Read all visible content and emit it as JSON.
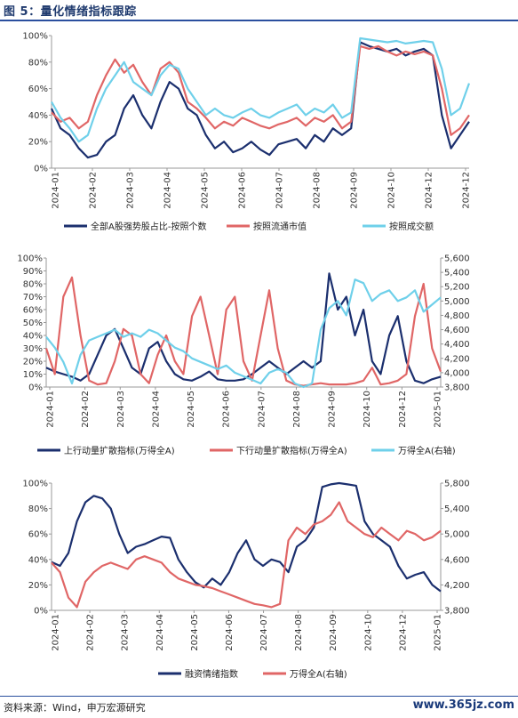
{
  "title": "图 5：量化情绪指标跟踪",
  "source": "资料来源：Wind，申万宏源研究",
  "watermark": "www.365jz.com",
  "chart_data": [
    {
      "type": "line",
      "x_ticks": [
        "2024-01",
        "2024-02",
        "2024-03",
        "2024-04",
        "2024-05",
        "2024-06",
        "2024-07",
        "2024-08",
        "2024-09",
        "2024-10",
        "2024-12",
        "2024-12"
      ],
      "y_ticks": [
        "0%",
        "20%",
        "40%",
        "60%",
        "80%",
        "100%"
      ],
      "ylim": [
        0,
        100
      ],
      "xlim": [
        0,
        23
      ],
      "legend": "bottom",
      "series": [
        {
          "name": "全部A股强势股占比-按照个数",
          "color": "#1b2f6e",
          "x": [
            0,
            0.5,
            1,
            1.5,
            2,
            2.5,
            3,
            3.5,
            4,
            4.5,
            5,
            5.5,
            6,
            6.5,
            7,
            7.5,
            8,
            8.5,
            9,
            9.5,
            10,
            10.5,
            11,
            11.5,
            12,
            12.5,
            13,
            13.5,
            14,
            14.5,
            15,
            15.5,
            16,
            16.5,
            17,
            17.5,
            18,
            18.5,
            19,
            19.5,
            20,
            20.5,
            21,
            21.5,
            22,
            22.5,
            23
          ],
          "values": [
            45,
            30,
            25,
            15,
            8,
            10,
            20,
            25,
            45,
            55,
            40,
            30,
            50,
            65,
            60,
            45,
            40,
            25,
            15,
            20,
            12,
            15,
            20,
            14,
            10,
            18,
            20,
            22,
            15,
            25,
            20,
            30,
            25,
            30,
            95,
            92,
            90,
            88,
            90,
            85,
            88,
            90,
            85,
            40,
            15,
            25,
            35
          ]
        },
        {
          "name": "按照流通市值",
          "color": "#e06666",
          "x": [
            0,
            0.5,
            1,
            1.5,
            2,
            2.5,
            3,
            3.5,
            4,
            4.5,
            5,
            5.5,
            6,
            6.5,
            7,
            7.5,
            8,
            8.5,
            9,
            9.5,
            10,
            10.5,
            11,
            11.5,
            12,
            12.5,
            13,
            13.5,
            14,
            14.5,
            15,
            15.5,
            16,
            16.5,
            17,
            17.5,
            18,
            18.5,
            19,
            19.5,
            20,
            20.5,
            21,
            21.5,
            22,
            22.5,
            23
          ],
          "values": [
            42,
            35,
            38,
            30,
            35,
            55,
            70,
            82,
            72,
            78,
            65,
            55,
            75,
            80,
            72,
            50,
            45,
            38,
            30,
            35,
            32,
            38,
            35,
            32,
            30,
            33,
            35,
            38,
            32,
            38,
            35,
            40,
            30,
            35,
            92,
            90,
            92,
            88,
            85,
            88,
            86,
            88,
            85,
            60,
            25,
            30,
            40
          ]
        },
        {
          "name": "按照成交额",
          "color": "#6fd0ea",
          "x": [
            0,
            0.5,
            1,
            1.5,
            2,
            2.5,
            3,
            3.5,
            4,
            4.5,
            5,
            5.5,
            6,
            6.5,
            7,
            7.5,
            8,
            8.5,
            9,
            9.5,
            10,
            10.5,
            11,
            11.5,
            12,
            12.5,
            13,
            13.5,
            14,
            14.5,
            15,
            15.5,
            16,
            16.5,
            17,
            17.5,
            18,
            18.5,
            19,
            19.5,
            20,
            20.5,
            21,
            21.5,
            22,
            22.5,
            23
          ],
          "values": [
            50,
            38,
            30,
            20,
            25,
            45,
            60,
            70,
            80,
            65,
            60,
            55,
            70,
            78,
            75,
            60,
            50,
            40,
            45,
            40,
            38,
            42,
            45,
            40,
            38,
            42,
            45,
            48,
            40,
            45,
            42,
            48,
            38,
            42,
            98,
            97,
            96,
            95,
            96,
            94,
            95,
            96,
            95,
            75,
            40,
            45,
            64
          ]
        }
      ]
    },
    {
      "type": "line",
      "x_ticks": [
        "2024-01",
        "2024-02",
        "2024-03",
        "2024-04",
        "2024-05",
        "2024-06",
        "2024-07",
        "2024-08",
        "2024-09",
        "2024-10",
        "2024-12",
        "2025-01"
      ],
      "y_ticks": [
        "0%",
        "10%",
        "20%",
        "30%",
        "40%",
        "50%",
        "60%",
        "70%",
        "80%",
        "90%",
        "100%"
      ],
      "y2_ticks": [
        "3,800",
        "4,000",
        "4,200",
        "4,400",
        "4,600",
        "4,800",
        "5,000",
        "5,200",
        "5,400",
        "5,600"
      ],
      "ylim": [
        0,
        100
      ],
      "y2lim": [
        3800,
        5600
      ],
      "xlim": [
        0,
        23
      ],
      "legend": "bottom",
      "series": [
        {
          "name": "上行动量扩散指标(万得全A)",
          "color": "#1b2f6e",
          "axis": "left",
          "x": [
            0,
            0.5,
            1,
            1.5,
            2,
            2.5,
            3,
            3.5,
            4,
            4.5,
            5,
            5.5,
            6,
            6.5,
            7,
            7.5,
            8,
            8.5,
            9,
            9.5,
            10,
            10.5,
            11,
            11.5,
            12,
            12.5,
            13,
            13.5,
            14,
            14.5,
            15,
            15.5,
            16,
            16.5,
            17,
            17.5,
            18,
            18.5,
            19,
            19.5,
            20,
            20.5,
            21,
            21.5,
            22,
            22.5,
            23
          ],
          "values": [
            15,
            12,
            10,
            8,
            5,
            10,
            25,
            40,
            45,
            30,
            15,
            10,
            30,
            35,
            20,
            10,
            6,
            5,
            8,
            12,
            6,
            5,
            5,
            6,
            10,
            15,
            20,
            15,
            10,
            15,
            20,
            15,
            20,
            88,
            60,
            70,
            40,
            60,
            20,
            10,
            40,
            55,
            20,
            5,
            3,
            6,
            8
          ]
        },
        {
          "name": "下行动量扩散指标(万得全A)",
          "color": "#e06666",
          "axis": "left",
          "x": [
            0,
            0.5,
            1,
            1.5,
            2,
            2.5,
            3,
            3.5,
            4,
            4.5,
            5,
            5.5,
            6,
            6.5,
            7,
            7.5,
            8,
            8.5,
            9,
            9.5,
            10,
            10.5,
            11,
            11.5,
            12,
            12.5,
            13,
            13.5,
            14,
            14.5,
            15,
            15.5,
            16,
            16.5,
            17,
            17.5,
            18,
            18.5,
            19,
            19.5,
            20,
            20.5,
            21,
            21.5,
            22,
            22.5,
            23
          ],
          "values": [
            30,
            10,
            70,
            85,
            40,
            5,
            2,
            3,
            20,
            45,
            40,
            10,
            3,
            25,
            40,
            20,
            10,
            55,
            70,
            40,
            10,
            60,
            70,
            20,
            5,
            40,
            75,
            30,
            5,
            2,
            1,
            2,
            3,
            2,
            2,
            2,
            3,
            5,
            15,
            2,
            3,
            5,
            10,
            55,
            80,
            30,
            12
          ]
        },
        {
          "name": "万得全A(右轴)",
          "color": "#6fd0ea",
          "axis": "right",
          "x": [
            0,
            0.5,
            1,
            1.5,
            2,
            2.5,
            3,
            3.5,
            4,
            4.5,
            5,
            5.5,
            6,
            6.5,
            7,
            7.5,
            8,
            8.5,
            9,
            9.5,
            10,
            10.5,
            11,
            11.5,
            12,
            12.5,
            13,
            13.5,
            14,
            14.5,
            15,
            15.5,
            16,
            16.5,
            17,
            17.5,
            18,
            18.5,
            19,
            19.5,
            20,
            20.5,
            21,
            21.5,
            22,
            22.5,
            23
          ],
          "values": [
            4500,
            4350,
            4150,
            3850,
            4250,
            4450,
            4500,
            4550,
            4600,
            4500,
            4550,
            4500,
            4600,
            4550,
            4450,
            4350,
            4300,
            4200,
            4150,
            4100,
            4050,
            4100,
            4000,
            3950,
            3900,
            3850,
            4000,
            4050,
            4000,
            3850,
            3800,
            3850,
            4600,
            4900,
            5000,
            4800,
            5300,
            5250,
            5000,
            5100,
            5150,
            5000,
            5050,
            5150,
            4850,
            4950,
            5050
          ]
        }
      ]
    },
    {
      "type": "line",
      "x_ticks": [
        "2024-01",
        "2024-02",
        "2024-03",
        "2024-04",
        "2024-05",
        "2024-06",
        "2024-07",
        "2024-08",
        "2024-09",
        "2024-10",
        "2024-12",
        "2025-01"
      ],
      "y_ticks": [
        "0%",
        "20%",
        "40%",
        "60%",
        "80%",
        "100%"
      ],
      "y2_ticks": [
        "3,800",
        "4,200",
        "4,600",
        "5,000",
        "5,400",
        "5,800"
      ],
      "ylim": [
        0,
        100
      ],
      "y2lim": [
        3800,
        5800
      ],
      "xlim": [
        0,
        23
      ],
      "legend": "bottom",
      "series": [
        {
          "name": "融资情绪指数",
          "color": "#1b2f6e",
          "axis": "left",
          "x": [
            0,
            0.5,
            1,
            1.5,
            2,
            2.5,
            3,
            3.5,
            4,
            4.5,
            5,
            5.5,
            6,
            6.5,
            7,
            7.5,
            8,
            8.5,
            9,
            9.5,
            10,
            10.5,
            11,
            11.5,
            12,
            12.5,
            13,
            13.5,
            14,
            14.5,
            15,
            15.5,
            16,
            16.5,
            17,
            17.5,
            18,
            18.5,
            19,
            19.5,
            20,
            20.5,
            21,
            21.5,
            22,
            22.5,
            23
          ],
          "values": [
            38,
            35,
            45,
            70,
            85,
            90,
            88,
            80,
            60,
            45,
            50,
            52,
            55,
            58,
            57,
            40,
            30,
            22,
            18,
            25,
            20,
            30,
            45,
            55,
            40,
            35,
            40,
            38,
            30,
            50,
            55,
            65,
            97,
            99,
            100,
            99,
            98,
            70,
            60,
            55,
            50,
            35,
            25,
            28,
            30,
            20,
            15
          ]
        },
        {
          "name": "万得全A(右轴)",
          "color": "#e06666",
          "axis": "right",
          "x": [
            0,
            0.5,
            1,
            1.5,
            2,
            2.5,
            3,
            3.5,
            4,
            4.5,
            5,
            5.5,
            6,
            6.5,
            7,
            7.5,
            8,
            8.5,
            9,
            9.5,
            10,
            10.5,
            11,
            11.5,
            12,
            12.5,
            13,
            13.5,
            14,
            14.5,
            15,
            15.5,
            16,
            16.5,
            17,
            17.5,
            18,
            18.5,
            19,
            19.5,
            20,
            20.5,
            21,
            21.5,
            22,
            22.5,
            23
          ],
          "values": [
            4550,
            4400,
            4000,
            3850,
            4250,
            4400,
            4500,
            4550,
            4500,
            4450,
            4600,
            4650,
            4600,
            4550,
            4400,
            4300,
            4250,
            4200,
            4180,
            4150,
            4100,
            4050,
            4000,
            3950,
            3900,
            3880,
            3850,
            3900,
            4900,
            5100,
            5000,
            5150,
            5200,
            5300,
            5500,
            5200,
            5100,
            5000,
            4950,
            5100,
            5000,
            4900,
            5050,
            5000,
            4900,
            4950,
            5050
          ]
        }
      ]
    }
  ]
}
